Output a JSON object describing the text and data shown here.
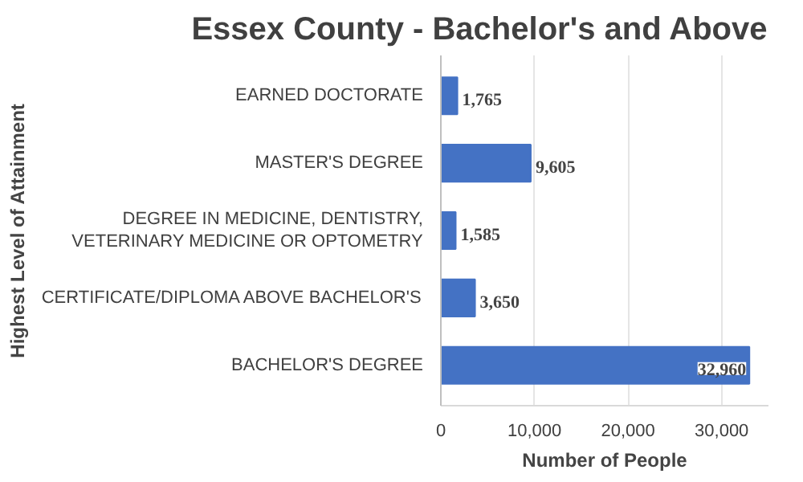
{
  "chart_data": {
    "type": "bar",
    "orientation": "horizontal",
    "title": "Essex County - Bachelor's and Above",
    "xlabel": "Number of People",
    "ylabel": "Highest Level of Attainment",
    "categories": [
      "EARNED DOCTORATE",
      "MASTER'S DEGREE",
      "DEGREE IN MEDICINE, DENTISTRY, VETERINARY MEDICINE OR OPTOMETRY",
      "CERTIFICATE/DIPLOMA ABOVE BACHELOR'S",
      "BACHELOR'S DEGREE"
    ],
    "values": [
      1765,
      9605,
      1585,
      3650,
      32960
    ],
    "value_labels": [
      "1,765",
      "9,605",
      "1,585",
      "3,650",
      "32,960"
    ],
    "color": "#4472c4",
    "xlim": [
      0,
      35000
    ],
    "xticks": [
      0,
      {
        "value": 10000,
        "label": "10,000"
      },
      {
        "value": 20000,
        "label": "20,000"
      },
      {
        "value": 30000,
        "label": "30,000"
      }
    ],
    "grid": "x"
  }
}
